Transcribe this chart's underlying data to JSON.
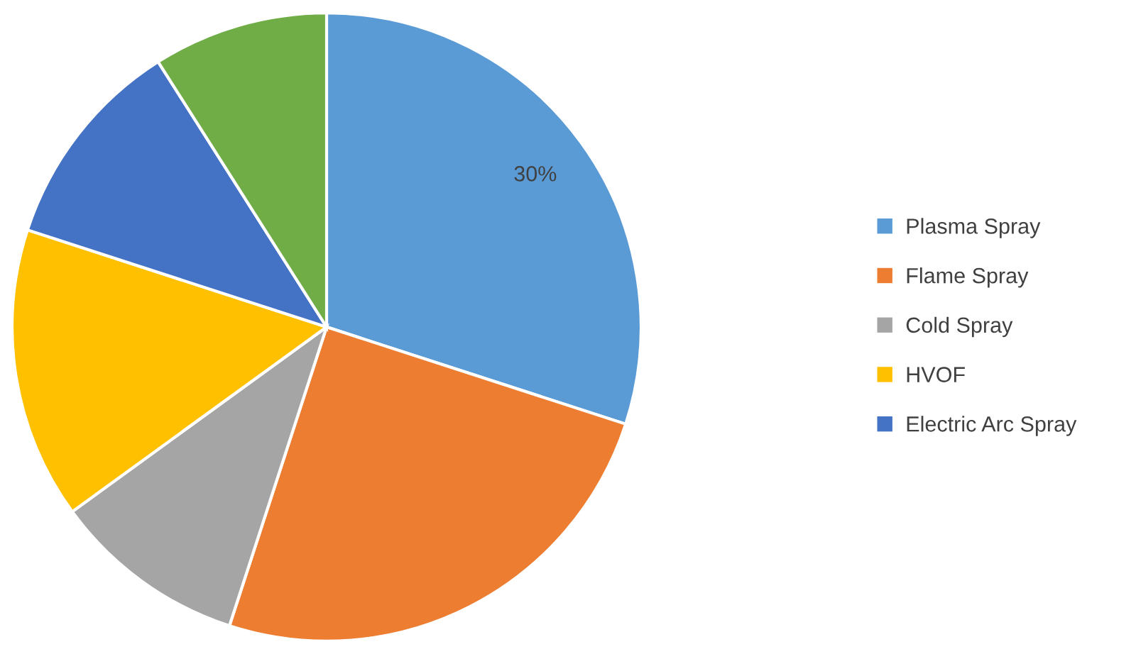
{
  "chart_data": {
    "type": "pie",
    "categories": [
      "Plasma Spray",
      "Flame Spray",
      "Cold Spray",
      "HVOF",
      "Electric Arc Spray",
      null
    ],
    "values": [
      30,
      25,
      10,
      15,
      11,
      9
    ],
    "colors": [
      "#5b9bd5",
      "#ed7d31",
      "#a5a5a5",
      "#ffc000",
      "#4472c4",
      "#70ad47"
    ],
    "value_labels": [
      "30%",
      null,
      null,
      null,
      null,
      null
    ],
    "legend": "right"
  }
}
